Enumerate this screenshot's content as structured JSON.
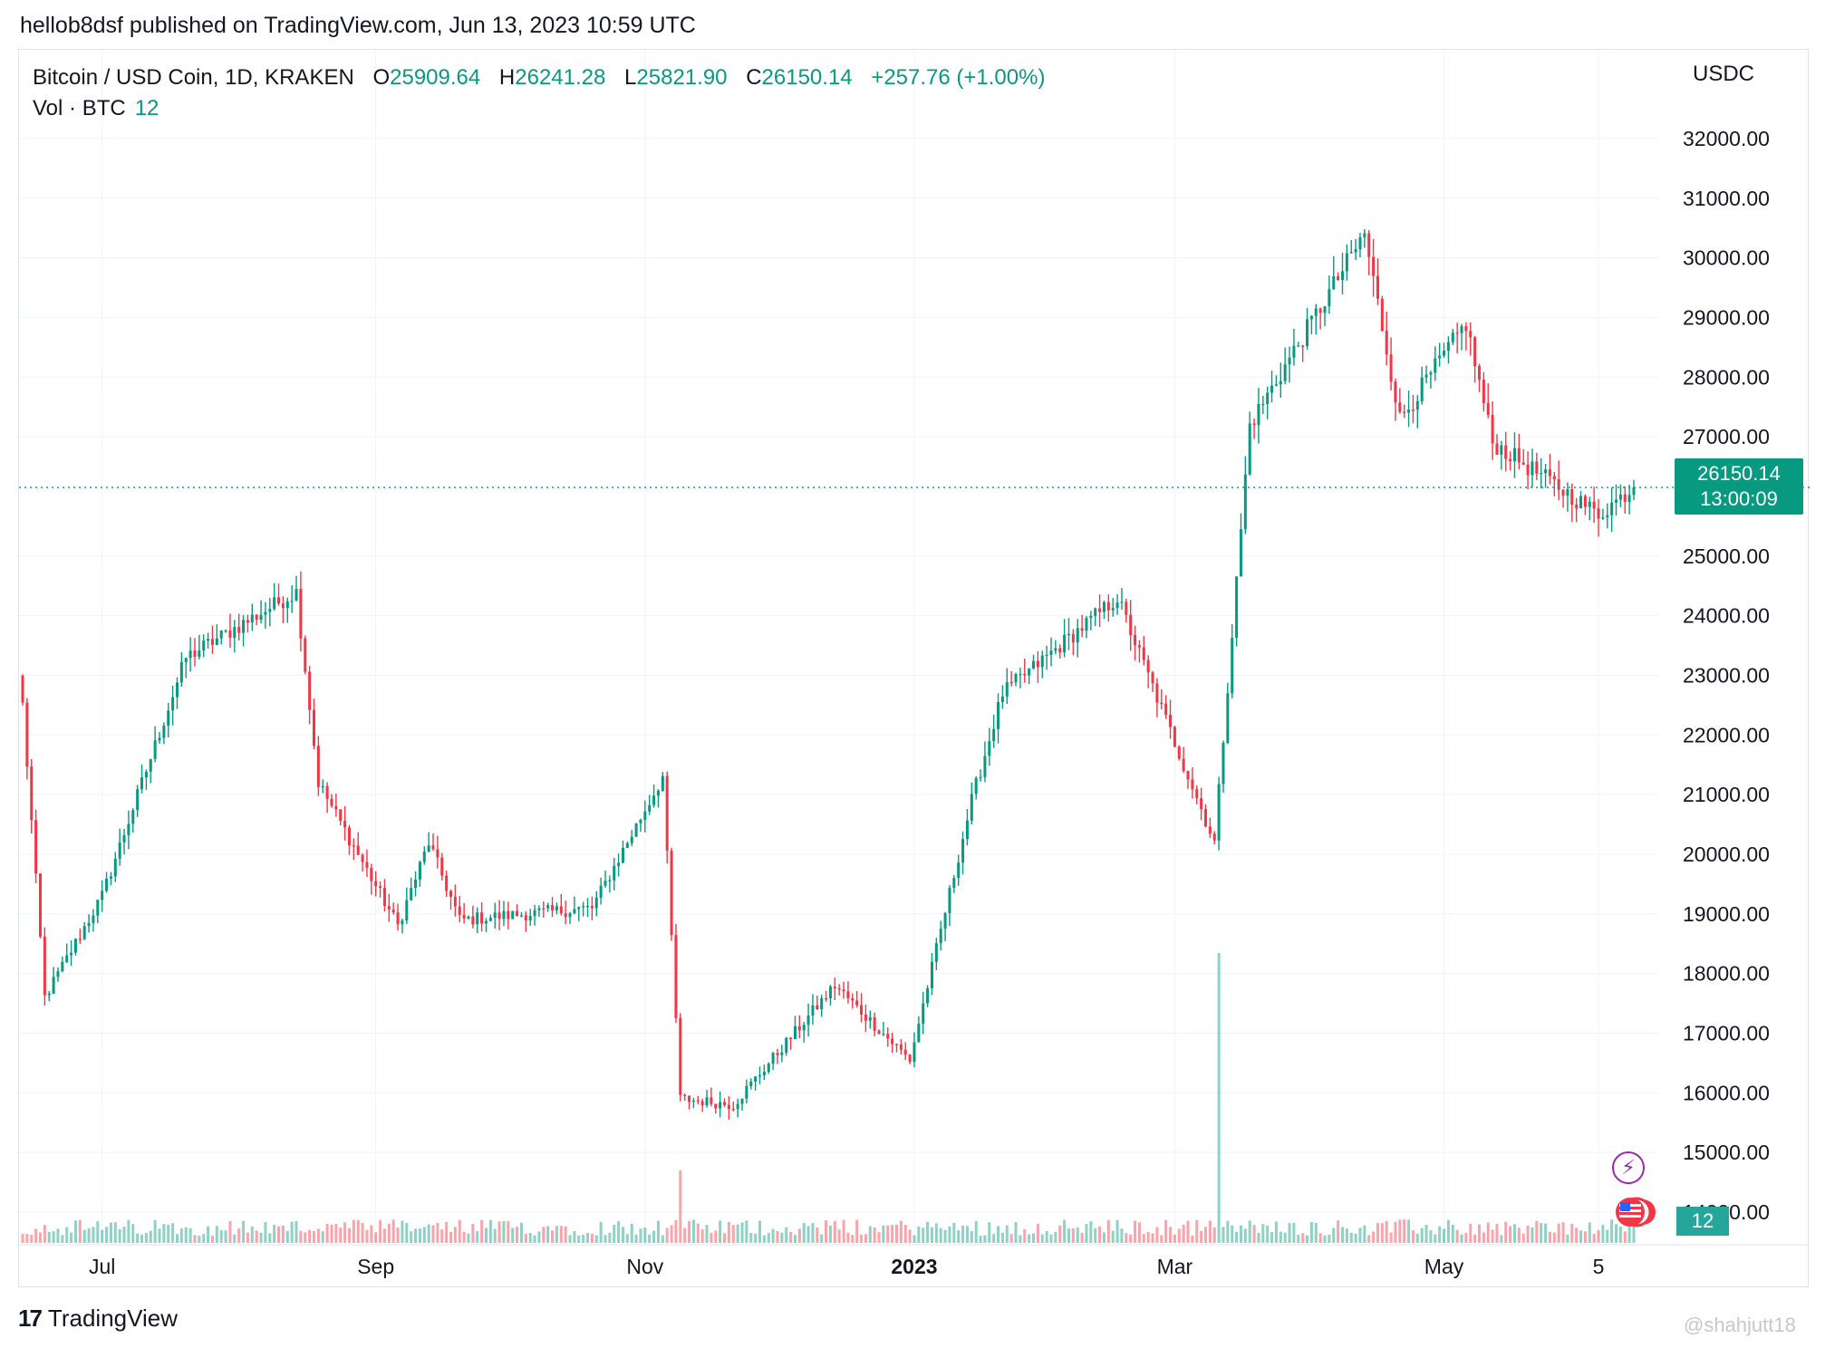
{
  "header": {
    "publish_line": "hellob8dsf published on TradingView.com, Jun 13, 2023 10:59 UTC"
  },
  "legend": {
    "symbol": "Bitcoin / USD Coin, 1D, KRAKEN",
    "o_label": "O",
    "o_value": "25909.64",
    "h_label": "H",
    "h_value": "26241.28",
    "l_label": "L",
    "l_value": "25821.90",
    "c_label": "C",
    "c_value": "26150.14",
    "change": "+257.76 (+1.00%)",
    "volume_label": "Vol · BTC",
    "volume_value": "12"
  },
  "axis": {
    "unit": "USDC"
  },
  "price_tag": {
    "price": "26150.14",
    "countdown": "13:00:09"
  },
  "volume_tag": "12",
  "footer": {
    "brand": "TradingView",
    "watermark": "@shahjutt18"
  },
  "colors": {
    "up": "#089981",
    "down": "#f23645",
    "grid": "#f0f3fa",
    "text": "#131722"
  },
  "icons": {
    "alert": "lightning-icon",
    "events": "us-flag-icon"
  },
  "chart_data": {
    "type": "candlestick",
    "symbol": "Bitcoin / USD Coin",
    "interval": "1D",
    "exchange": "KRAKEN",
    "y_ticks": [
      "32000.00",
      "31000.00",
      "30000.00",
      "29000.00",
      "28000.00",
      "27000.00",
      "25000.00",
      "24000.00",
      "23000.00",
      "22000.00",
      "21000.00",
      "20000.00",
      "19000.00",
      "18000.00",
      "17000.00",
      "16000.00",
      "15000.00",
      "14000.00"
    ],
    "x_ticks": [
      "Jul",
      "Sep",
      "Nov",
      "2023",
      "Mar",
      "May",
      "5"
    ],
    "ylim": [
      14000,
      32500
    ],
    "last_close": 26150.14,
    "key_points": [
      {
        "date": "2022-06-13",
        "close": 22500
      },
      {
        "date": "2022-06-18",
        "close": 17600
      },
      {
        "date": "2022-07-01",
        "close": 19300
      },
      {
        "date": "2022-07-20",
        "close": 23300
      },
      {
        "date": "2022-08-14",
        "close": 24400
      },
      {
        "date": "2022-08-19",
        "close": 21200
      },
      {
        "date": "2022-09-06",
        "close": 18800
      },
      {
        "date": "2022-09-13",
        "close": 20200
      },
      {
        "date": "2022-09-20",
        "close": 18900
      },
      {
        "date": "2022-10-20",
        "close": 19100
      },
      {
        "date": "2022-11-05",
        "close": 21300
      },
      {
        "date": "2022-11-09",
        "close": 15900
      },
      {
        "date": "2022-11-21",
        "close": 15800
      },
      {
        "date": "2022-12-14",
        "close": 17800
      },
      {
        "date": "2022-12-31",
        "close": 16550
      },
      {
        "date": "2023-01-14",
        "close": 20900
      },
      {
        "date": "2023-01-21",
        "close": 22700
      },
      {
        "date": "2023-02-16",
        "close": 24300
      },
      {
        "date": "2023-03-10",
        "close": 20200
      },
      {
        "date": "2023-03-18",
        "close": 27200
      },
      {
        "date": "2023-04-13",
        "close": 30400
      },
      {
        "date": "2023-04-21",
        "close": 27300
      },
      {
        "date": "2023-05-06",
        "close": 28900
      },
      {
        "date": "2023-05-12",
        "close": 26900
      },
      {
        "date": "2023-06-05",
        "close": 25700
      },
      {
        "date": "2023-06-13",
        "close": 26150
      }
    ]
  }
}
